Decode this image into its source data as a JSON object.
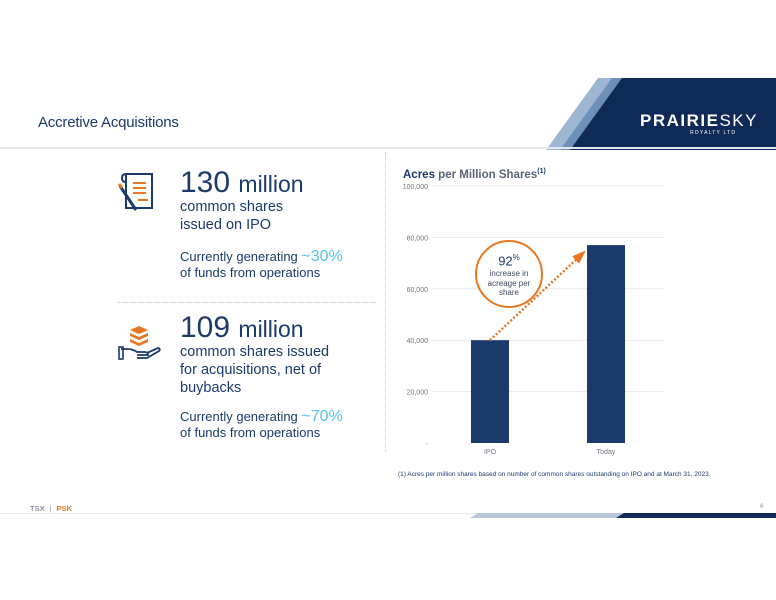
{
  "header": {
    "section_title": "Accretive Acquisitions",
    "logo": {
      "name_bold": "PRAIRIE",
      "name_light": "SKY",
      "sub": "ROYALTY LTD"
    }
  },
  "stats": [
    {
      "icon": "contract-pen-icon",
      "number": "130",
      "unit": "million",
      "desc_lines": [
        "common shares",
        "issued on IPO"
      ],
      "gen_prefix": "Currently generating",
      "gen_pct": "~30%",
      "gen_suffix": "of funds from operations"
    },
    {
      "icon": "hand-coins-icon",
      "number": "109",
      "unit": "million",
      "desc_lines": [
        "common shares issued",
        "for acquisitions, net of",
        "buybacks"
      ],
      "gen_prefix": "Currently generating",
      "gen_pct": "~70%",
      "gen_suffix": "of funds from operations"
    }
  ],
  "chart_data": {
    "type": "bar",
    "title_bold": "Acres",
    "title_rest": "per Million Shares",
    "title_sup": "(1)",
    "categories": [
      "IPO",
      "Today"
    ],
    "values": [
      40000,
      77000
    ],
    "ylim": [
      0,
      100000
    ],
    "yticks": [
      "-",
      "20,000",
      "40,000",
      "60,000",
      "80,000",
      "100,000"
    ],
    "grid": true,
    "bar_color": "#1b3a6b",
    "callout": {
      "value": "92",
      "unit": "%",
      "lines": [
        "increase in",
        "acreage per",
        "share"
      ]
    }
  },
  "footnote": "(1) Acres per million shares based on number of common shares outstanding on IPO and at March 31, 2023.",
  "footer": {
    "ticker_exchange": "TSX",
    "separator": "|",
    "ticker_symbol": "PSK",
    "page_number": "6"
  },
  "colors": {
    "navy": "#1b3a6b",
    "orange": "#e87722",
    "cyan": "#4fc3e8",
    "steel": "#6d8fb8"
  }
}
